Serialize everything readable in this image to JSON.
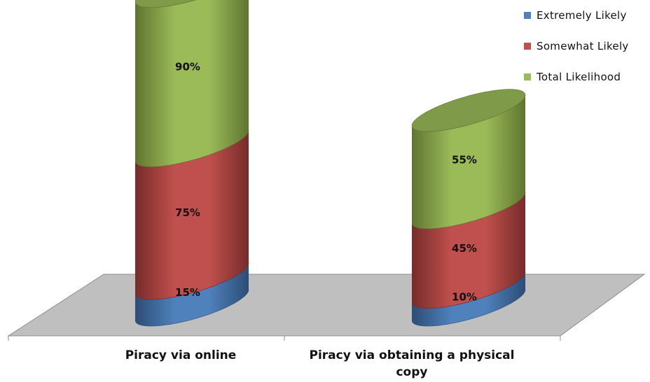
{
  "chart_data": {
    "type": "bar",
    "stacked": true,
    "style": "3d-cylinder",
    "categories": [
      "Piracy via online",
      "Piracy via obtaining a physical copy"
    ],
    "series": [
      {
        "name": "Extremely Likely",
        "values": [
          15,
          10
        ],
        "labels": [
          "15%",
          "10%"
        ],
        "color": "#4f81bd"
      },
      {
        "name": "Somewhat Likely",
        "values": [
          75,
          45
        ],
        "labels": [
          "75%",
          "45%"
        ],
        "color": "#c0504d"
      },
      {
        "name": "Total Likelihood",
        "values": [
          90,
          55
        ],
        "labels": [
          "90%",
          "55%"
        ],
        "color": "#9bbb59"
      }
    ],
    "legend_position": "top-right",
    "grid": false
  },
  "colors": {
    "floor": "#bfbfbf",
    "series_dark": [
      "#2c4d75",
      "#772c2a",
      "#5f7530"
    ],
    "series_top": "#7f9a48"
  }
}
